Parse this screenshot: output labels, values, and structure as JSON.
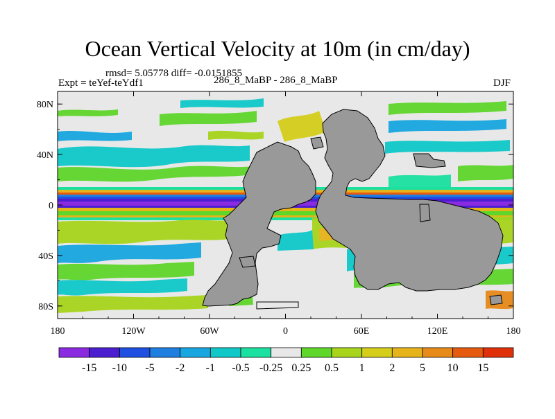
{
  "title": "Ocean Vertical Velocity at 10m (in cm/day)",
  "stats": "rmsd= 5.05778 diff= -0.0151855",
  "experiment": "Expt = teYef-teYdf1",
  "comparison": "286_8_MaBP - 286_8_MaBP",
  "season": "DJF",
  "chart_data": {
    "type": "heatmap",
    "title": "Ocean Vertical Velocity at 10m (in cm/day)",
    "xlabel": "",
    "ylabel": "",
    "xlim": [
      -180,
      180
    ],
    "ylim": [
      -90,
      90
    ],
    "x_ticks": [
      {
        "value": -180,
        "label": "180"
      },
      {
        "value": -120,
        "label": "120W"
      },
      {
        "value": -60,
        "label": "60W"
      },
      {
        "value": 0,
        "label": "0"
      },
      {
        "value": 60,
        "label": "60E"
      },
      {
        "value": 120,
        "label": "120E"
      },
      {
        "value": 180,
        "label": "180"
      }
    ],
    "y_ticks": [
      {
        "value": 80,
        "label": "80N"
      },
      {
        "value": 40,
        "label": "40N"
      },
      {
        "value": 0,
        "label": "0"
      },
      {
        "value": -40,
        "label": "40S"
      },
      {
        "value": -80,
        "label": "80S"
      }
    ],
    "colorbar": {
      "labels": [
        "-15",
        "-10",
        "-5",
        "-2",
        "-1",
        "-0.5",
        "-0.25",
        "0.25",
        "0.5",
        "1",
        "2",
        "5",
        "10",
        "15"
      ],
      "colors": [
        "#8a2be2",
        "#4b1fd0",
        "#1e4fe0",
        "#1f7fe0",
        "#17a6e0",
        "#10c8c8",
        "#1ae0a0",
        "#e8e8e8",
        "#5ed62a",
        "#a8d41c",
        "#d4cd1a",
        "#e6b31a",
        "#e68a1a",
        "#e65a10",
        "#e0300a"
      ]
    },
    "land_color": "#999999",
    "missing_color": "#e8e8e8"
  }
}
